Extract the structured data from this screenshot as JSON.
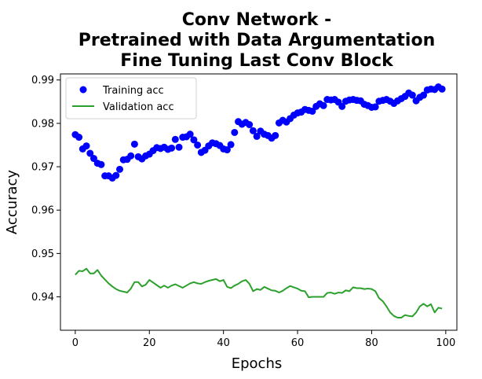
{
  "chart_data": {
    "type": "line",
    "title_lines": [
      "Conv Network -",
      "Pretrained with Data Argumentation",
      "Fine Tuning Last Conv Block"
    ],
    "xlabel": "Epochs",
    "ylabel": "Accuracy",
    "xlim": [
      -4,
      103
    ],
    "ylim": [
      0.9323,
      0.9914
    ],
    "xticks": [
      0,
      20,
      40,
      60,
      80,
      100
    ],
    "xtick_labels": [
      "0",
      "20",
      "40",
      "60",
      "80",
      "100"
    ],
    "yticks": [
      0.94,
      0.95,
      0.96,
      0.97,
      0.98,
      0.99
    ],
    "ytick_labels": [
      "0.94",
      "0.95",
      "0.96",
      "0.97",
      "0.98",
      "0.99"
    ],
    "grid": false,
    "legend_position": "upper-left",
    "series": [
      {
        "name": "Training acc",
        "style": "points",
        "color": "#0000ff",
        "x": [
          0,
          1,
          2,
          3,
          4,
          5,
          6,
          7,
          8,
          9,
          10,
          11,
          12,
          13,
          14,
          15,
          16,
          17,
          18,
          19,
          20,
          21,
          22,
          23,
          24,
          25,
          26,
          27,
          28,
          29,
          30,
          31,
          32,
          33,
          34,
          35,
          36,
          37,
          38,
          39,
          40,
          41,
          42,
          43,
          44,
          45,
          46,
          47,
          48,
          49,
          50,
          51,
          52,
          53,
          54,
          55,
          56,
          57,
          58,
          59,
          60,
          61,
          62,
          63,
          64,
          65,
          66,
          67,
          68,
          69,
          70,
          71,
          72,
          73,
          74,
          75,
          76,
          77,
          78,
          79,
          80,
          81,
          82,
          83,
          84,
          85,
          86,
          87,
          88,
          89,
          90,
          91,
          92,
          93,
          94,
          95,
          96,
          97,
          98,
          99
        ],
        "values": [
          0.9774,
          0.9768,
          0.9741,
          0.9748,
          0.9731,
          0.9719,
          0.9708,
          0.9705,
          0.9679,
          0.9679,
          0.9674,
          0.968,
          0.9694,
          0.9716,
          0.9717,
          0.9725,
          0.9752,
          0.9723,
          0.9718,
          0.9725,
          0.9729,
          0.9737,
          0.9744,
          0.9742,
          0.9745,
          0.974,
          0.9743,
          0.9763,
          0.9745,
          0.9768,
          0.9769,
          0.9775,
          0.9762,
          0.975,
          0.9733,
          0.9738,
          0.9748,
          0.9755,
          0.9753,
          0.9749,
          0.9741,
          0.9739,
          0.9751,
          0.9779,
          0.9804,
          0.9798,
          0.9802,
          0.9797,
          0.9783,
          0.977,
          0.9782,
          0.9775,
          0.9772,
          0.9766,
          0.9772,
          0.9801,
          0.9807,
          0.9803,
          0.9811,
          0.9819,
          0.9824,
          0.9826,
          0.9832,
          0.983,
          0.9828,
          0.9839,
          0.9845,
          0.9841,
          0.9855,
          0.9854,
          0.9855,
          0.9849,
          0.9839,
          0.9851,
          0.9854,
          0.9855,
          0.9853,
          0.9852,
          0.9844,
          0.9841,
          0.9837,
          0.9838,
          0.9851,
          0.9853,
          0.9855,
          0.9851,
          0.9846,
          0.9852,
          0.9857,
          0.9862,
          0.987,
          0.9865,
          0.9852,
          0.986,
          0.9865,
          0.9877,
          0.9879,
          0.9878,
          0.9884,
          0.9879
        ]
      },
      {
        "name": "Validation acc",
        "style": "line",
        "color": "#2ca02c",
        "x": [
          0,
          1,
          2,
          3,
          4,
          5,
          6,
          7,
          8,
          9,
          10,
          11,
          12,
          13,
          14,
          15,
          16,
          17,
          18,
          19,
          20,
          21,
          22,
          23,
          24,
          25,
          26,
          27,
          28,
          29,
          30,
          31,
          32,
          33,
          34,
          35,
          36,
          37,
          38,
          39,
          40,
          41,
          42,
          43,
          44,
          45,
          46,
          47,
          48,
          49,
          50,
          51,
          52,
          53,
          54,
          55,
          56,
          57,
          58,
          59,
          60,
          61,
          62,
          63,
          64,
          65,
          66,
          67,
          68,
          69,
          70,
          71,
          72,
          73,
          74,
          75,
          76,
          77,
          78,
          79,
          80,
          81,
          82,
          83,
          84,
          85,
          86,
          87,
          88,
          89,
          90,
          91,
          92,
          93,
          94,
          95,
          96,
          97,
          98,
          99
        ],
        "values": [
          0.9451,
          0.946,
          0.9459,
          0.9465,
          0.9454,
          0.9454,
          0.9462,
          0.9449,
          0.944,
          0.9431,
          0.9424,
          0.9418,
          0.9414,
          0.9412,
          0.941,
          0.9419,
          0.9434,
          0.9434,
          0.9424,
          0.9428,
          0.9439,
          0.9433,
          0.9427,
          0.9421,
          0.9426,
          0.9421,
          0.9426,
          0.9429,
          0.9425,
          0.9421,
          0.9426,
          0.9431,
          0.9434,
          0.9431,
          0.943,
          0.9434,
          0.9437,
          0.9439,
          0.9441,
          0.9436,
          0.9439,
          0.9423,
          0.942,
          0.9426,
          0.943,
          0.9436,
          0.9439,
          0.943,
          0.9413,
          0.9418,
          0.9416,
          0.9423,
          0.9419,
          0.9415,
          0.9414,
          0.941,
          0.9414,
          0.942,
          0.9425,
          0.9422,
          0.9419,
          0.9414,
          0.9413,
          0.9399,
          0.94,
          0.94,
          0.94,
          0.94,
          0.9409,
          0.941,
          0.9407,
          0.941,
          0.9409,
          0.9415,
          0.9413,
          0.9422,
          0.942,
          0.942,
          0.9418,
          0.9419,
          0.9418,
          0.9413,
          0.9397,
          0.939,
          0.9378,
          0.9364,
          0.9356,
          0.9352,
          0.9352,
          0.9358,
          0.9356,
          0.9355,
          0.9364,
          0.9378,
          0.9384,
          0.9378,
          0.9383,
          0.9364,
          0.9375,
          0.9373
        ]
      }
    ]
  }
}
